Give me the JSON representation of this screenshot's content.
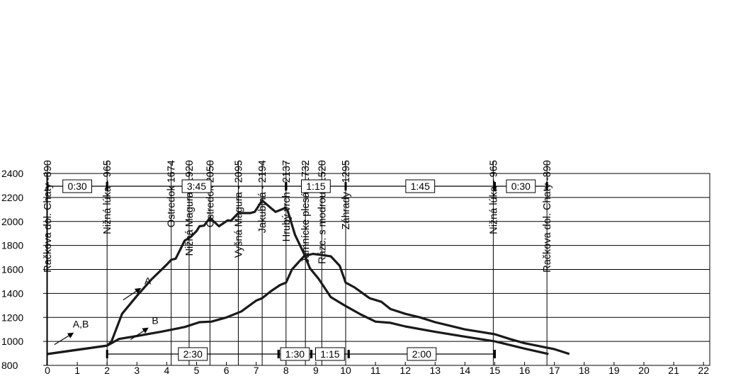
{
  "chart_data": {
    "type": "line",
    "title": "",
    "xlabel": "",
    "ylabel": "",
    "xlim": [
      0,
      22
    ],
    "ylim": [
      800,
      2400
    ],
    "grid": true,
    "x_ticks": [
      0,
      1,
      2,
      3,
      4,
      5,
      6,
      7,
      8,
      9,
      10,
      11,
      12,
      13,
      14,
      15,
      16,
      17,
      18,
      19,
      20,
      21,
      22
    ],
    "y_ticks": [
      800,
      1000,
      1200,
      1400,
      1600,
      1800,
      2000,
      2200,
      2400
    ],
    "series": [
      {
        "name": "A",
        "color": "#1a1a1a",
        "points": [
          [
            0,
            895
          ],
          [
            1,
            930
          ],
          [
            2,
            965
          ],
          [
            2.15,
            1000
          ],
          [
            2.5,
            1230
          ],
          [
            3,
            1380
          ],
          [
            3.5,
            1520
          ],
          [
            4,
            1640
          ],
          [
            4.15,
            1680
          ],
          [
            4.3,
            1690
          ],
          [
            4.6,
            1840
          ],
          [
            4.8,
            1870
          ],
          [
            5,
            1920
          ],
          [
            5.1,
            1960
          ],
          [
            5.25,
            1965
          ],
          [
            5.45,
            2030
          ],
          [
            5.75,
            1960
          ],
          [
            6.05,
            2010
          ],
          [
            6.15,
            2005
          ],
          [
            6.4,
            2070
          ],
          [
            6.8,
            2070
          ],
          [
            6.95,
            2080
          ],
          [
            7.2,
            2175
          ],
          [
            7.5,
            2110
          ],
          [
            7.65,
            2080
          ],
          [
            7.95,
            2110
          ],
          [
            8.05,
            2095
          ],
          [
            8.3,
            1890
          ],
          [
            8.6,
            1732
          ],
          [
            8.8,
            1610
          ],
          [
            9.1,
            1520
          ],
          [
            9.5,
            1370
          ],
          [
            10,
            1295
          ],
          [
            10.5,
            1225
          ],
          [
            11,
            1165
          ],
          [
            11.5,
            1155
          ],
          [
            12,
            1125
          ],
          [
            13,
            1080
          ],
          [
            14,
            1040
          ],
          [
            15,
            1000
          ],
          [
            15.5,
            970
          ],
          [
            16,
            940
          ],
          [
            16.8,
            895
          ]
        ],
        "label": "A",
        "label_pos": [
          3.25,
          1475
        ]
      },
      {
        "name": "B",
        "color": "#1a1a1a",
        "points": [
          [
            0,
            895
          ],
          [
            1,
            930
          ],
          [
            2,
            965
          ],
          [
            2.4,
            1020
          ],
          [
            3,
            1045
          ],
          [
            3.8,
            1080
          ],
          [
            4.6,
            1120
          ],
          [
            5.1,
            1160
          ],
          [
            5.5,
            1165
          ],
          [
            6,
            1200
          ],
          [
            6.5,
            1250
          ],
          [
            7,
            1340
          ],
          [
            7.2,
            1360
          ],
          [
            7.5,
            1420
          ],
          [
            7.8,
            1470
          ],
          [
            8,
            1490
          ],
          [
            8.2,
            1600
          ],
          [
            8.6,
            1710
          ],
          [
            8.9,
            1730
          ],
          [
            9.2,
            1720
          ],
          [
            9.5,
            1710
          ],
          [
            9.8,
            1630
          ],
          [
            10,
            1490
          ],
          [
            10.3,
            1450
          ],
          [
            10.8,
            1360
          ],
          [
            11.2,
            1330
          ],
          [
            11.5,
            1270
          ],
          [
            12,
            1230
          ],
          [
            12.5,
            1200
          ],
          [
            13,
            1160
          ],
          [
            13.5,
            1130
          ],
          [
            14,
            1100
          ],
          [
            14.5,
            1080
          ],
          [
            15,
            1060
          ],
          [
            15.5,
            1020
          ],
          [
            16,
            985
          ],
          [
            17,
            935
          ],
          [
            17.5,
            895
          ]
        ],
        "label": "B",
        "label_pos": [
          3.5,
          1145
        ]
      }
    ],
    "annotations": [
      {
        "text": "A,B",
        "x": 0.85,
        "y": 1115
      }
    ],
    "waypoints": [
      {
        "label": "Račkova dol. Chaty -890",
        "x": 0
      },
      {
        "label": "Nižná lúka - 965",
        "x": 2
      },
      {
        "label": "Ostredok 1674",
        "x": 4.15
      },
      {
        "label": "Nižná Magura - 1920",
        "x": 4.75
      },
      {
        "label": "Ostredok 2050",
        "x": 5.45
      },
      {
        "label": "Vyšná Magura - 2095",
        "x": 6.4
      },
      {
        "label": "Jakubiná - 2194",
        "x": 7.2
      },
      {
        "label": "Hrubý vrch - 2137",
        "x": 8.0
      },
      {
        "label": "Jamnícke plesá - 1732",
        "x": 8.65
      },
      {
        "label": "Rázc. s modrou - 1520",
        "x": 9.2
      },
      {
        "label": "Záhrady - 1295",
        "x": 10.0
      },
      {
        "label": "Nižná lúka - 965",
        "x": 14.95
      },
      {
        "label": "Račkova dol. Chaty -890",
        "x": 16.75
      }
    ],
    "time_segments_top": [
      {
        "label": "0:30",
        "from": 0,
        "to": 2
      },
      {
        "label": "3:45",
        "from": 2,
        "to": 8
      },
      {
        "label": "1:15",
        "from": 8,
        "to": 10
      },
      {
        "label": "1:45",
        "from": 10,
        "to": 15
      },
      {
        "label": "0:30",
        "from": 15,
        "to": 16.75
      }
    ],
    "time_segments_bottom": [
      {
        "label": "2:30",
        "from": 2,
        "to": 7.75
      },
      {
        "label": "1:30",
        "from": 7.75,
        "to": 8.85
      },
      {
        "label": "1:15",
        "from": 8.85,
        "to": 10.1
      },
      {
        "label": "2:00",
        "from": 10.1,
        "to": 15.0
      }
    ]
  }
}
